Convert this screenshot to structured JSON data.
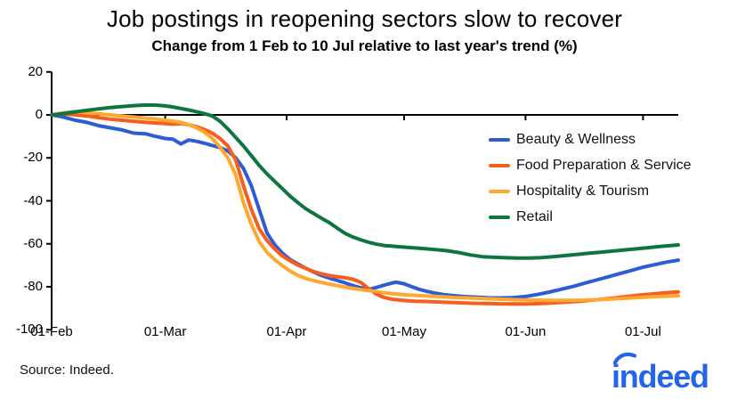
{
  "source_text": "Source: Indeed.",
  "logo_text": "indeed",
  "colors": {
    "logo_blue": "#2563eb",
    "axis_black": "#000000"
  },
  "chart_data": {
    "type": "line",
    "title": "Job postings in reopening sectors slow to recover",
    "subtitle": "Change from 1 Feb to 10 Jul relative to last year's trend (%)",
    "x_unit": "days since 1 Feb 2020",
    "x_axis": {
      "tick_labels": [
        "01-Feb",
        "01-Mar",
        "01-Apr",
        "01-May",
        "01-Jun",
        "01-Jul"
      ],
      "tick_days": [
        0,
        29,
        60,
        90,
        121,
        151
      ],
      "range_days": [
        0,
        160
      ]
    },
    "y_axis": {
      "ticks": [
        20,
        0,
        -20,
        -40,
        -60,
        -80,
        -100
      ],
      "range": [
        -100,
        20
      ],
      "grid": false
    },
    "legend_position": "right-middle",
    "series": [
      {
        "name": "Beauty & Wellness",
        "color": "#2c5dd5",
        "points": [
          [
            0,
            0
          ],
          [
            3,
            -1
          ],
          [
            6,
            -2.5
          ],
          [
            9,
            -3.5
          ],
          [
            12,
            -5
          ],
          [
            15,
            -6
          ],
          [
            18,
            -7
          ],
          [
            21,
            -8.5
          ],
          [
            24,
            -8.8
          ],
          [
            26,
            -9.8
          ],
          [
            29,
            -11
          ],
          [
            31,
            -11.3
          ],
          [
            33,
            -13.5
          ],
          [
            35,
            -11.7
          ],
          [
            37,
            -12.3
          ],
          [
            39,
            -13.2
          ],
          [
            41,
            -14.2
          ],
          [
            43,
            -15.2
          ],
          [
            45,
            -16.8
          ],
          [
            47,
            -20
          ],
          [
            49,
            -25
          ],
          [
            51,
            -33
          ],
          [
            53,
            -44
          ],
          [
            55,
            -55
          ],
          [
            57,
            -60.5
          ],
          [
            59,
            -64.5
          ],
          [
            61,
            -67.5
          ],
          [
            63,
            -69.5
          ],
          [
            65,
            -71.5
          ],
          [
            67,
            -73.2
          ],
          [
            69,
            -74.8
          ],
          [
            71,
            -76
          ],
          [
            73,
            -77.1
          ],
          [
            75,
            -78.2
          ],
          [
            77,
            -79.5
          ],
          [
            79,
            -80.5
          ],
          [
            81,
            -81.2
          ],
          [
            83,
            -80.3
          ],
          [
            85,
            -79.2
          ],
          [
            87,
            -78.2
          ],
          [
            88,
            -77.9
          ],
          [
            90,
            -78.6
          ],
          [
            92,
            -80
          ],
          [
            94,
            -81.3
          ],
          [
            96,
            -82.2
          ],
          [
            98,
            -83
          ],
          [
            100,
            -83.6
          ],
          [
            103,
            -84.2
          ],
          [
            106,
            -84.6
          ],
          [
            109,
            -84.9
          ],
          [
            112,
            -85.2
          ],
          [
            115,
            -85.2
          ],
          [
            118,
            -85
          ],
          [
            121,
            -84.5
          ],
          [
            124,
            -83.6
          ],
          [
            127,
            -82.5
          ],
          [
            130,
            -81.2
          ],
          [
            133,
            -79.9
          ],
          [
            136,
            -78.4
          ],
          [
            139,
            -76.9
          ],
          [
            142,
            -75.4
          ],
          [
            145,
            -73.9
          ],
          [
            148,
            -72.4
          ],
          [
            151,
            -70.9
          ],
          [
            154,
            -69.7
          ],
          [
            157,
            -68.5
          ],
          [
            160,
            -67.6
          ]
        ]
      },
      {
        "name": "Food Preparation & Service",
        "color": "#f75d1d",
        "points": [
          [
            0,
            0
          ],
          [
            3,
            0.5
          ],
          [
            6,
            0
          ],
          [
            9,
            -0.5
          ],
          [
            12,
            -1.3
          ],
          [
            15,
            -2
          ],
          [
            18,
            -2.5
          ],
          [
            21,
            -3
          ],
          [
            24,
            -3.5
          ],
          [
            27,
            -3.8
          ],
          [
            29,
            -4
          ],
          [
            31,
            -4.3
          ],
          [
            33,
            -4
          ],
          [
            35,
            -4.6
          ],
          [
            37,
            -5.5
          ],
          [
            39,
            -6.8
          ],
          [
            41,
            -8.5
          ],
          [
            43,
            -11
          ],
          [
            45,
            -14.5
          ],
          [
            47,
            -21
          ],
          [
            49,
            -33
          ],
          [
            51,
            -44
          ],
          [
            53,
            -53
          ],
          [
            55,
            -58.5
          ],
          [
            57,
            -62.5
          ],
          [
            59,
            -65.8
          ],
          [
            61,
            -68
          ],
          [
            63,
            -70
          ],
          [
            65,
            -71.5
          ],
          [
            67,
            -73
          ],
          [
            69,
            -74
          ],
          [
            71,
            -74.8
          ],
          [
            73,
            -75.3
          ],
          [
            75,
            -75.8
          ],
          [
            77,
            -76.5
          ],
          [
            79,
            -78
          ],
          [
            81,
            -81
          ],
          [
            83,
            -83.5
          ],
          [
            85,
            -85
          ],
          [
            87,
            -85.8
          ],
          [
            89,
            -86.2
          ],
          [
            91,
            -86.5
          ],
          [
            93,
            -86.7
          ],
          [
            96,
            -86.9
          ],
          [
            99,
            -87.1
          ],
          [
            102,
            -87.3
          ],
          [
            105,
            -87.5
          ],
          [
            108,
            -87.7
          ],
          [
            111,
            -87.8
          ],
          [
            114,
            -87.9
          ],
          [
            117,
            -88
          ],
          [
            120,
            -88
          ],
          [
            123,
            -87.9
          ],
          [
            126,
            -87.7
          ],
          [
            129,
            -87.4
          ],
          [
            132,
            -87.1
          ],
          [
            135,
            -86.7
          ],
          [
            138,
            -86.2
          ],
          [
            141,
            -85.7
          ],
          [
            144,
            -85.1
          ],
          [
            147,
            -84.5
          ],
          [
            150,
            -83.9
          ],
          [
            153,
            -83.4
          ],
          [
            156,
            -82.9
          ],
          [
            159,
            -82.5
          ],
          [
            160,
            -82.4
          ]
        ]
      },
      {
        "name": "Hospitality & Tourism",
        "color": "#fea82f",
        "points": [
          [
            0,
            0
          ],
          [
            3,
            1
          ],
          [
            6,
            1.5
          ],
          [
            9,
            1
          ],
          [
            12,
            0.5
          ],
          [
            15,
            0
          ],
          [
            18,
            -0.5
          ],
          [
            21,
            -1
          ],
          [
            24,
            -1.5
          ],
          [
            27,
            -2
          ],
          [
            29,
            -2.5
          ],
          [
            31,
            -3
          ],
          [
            33,
            -3.5
          ],
          [
            35,
            -4.5
          ],
          [
            37,
            -6
          ],
          [
            39,
            -8
          ],
          [
            41,
            -11
          ],
          [
            43,
            -15
          ],
          [
            45,
            -20
          ],
          [
            47,
            -28
          ],
          [
            49,
            -41
          ],
          [
            51,
            -51
          ],
          [
            53,
            -59
          ],
          [
            55,
            -64
          ],
          [
            57,
            -67.5
          ],
          [
            59,
            -70.3
          ],
          [
            61,
            -72.8
          ],
          [
            63,
            -74.8
          ],
          [
            65,
            -76.2
          ],
          [
            67,
            -77.2
          ],
          [
            69,
            -78
          ],
          [
            71,
            -78.8
          ],
          [
            73,
            -79.5
          ],
          [
            75,
            -80.2
          ],
          [
            77,
            -80.8
          ],
          [
            79,
            -81.3
          ],
          [
            81,
            -81.8
          ],
          [
            83,
            -82.3
          ],
          [
            85,
            -82.8
          ],
          [
            87,
            -83.2
          ],
          [
            89,
            -83.5
          ],
          [
            91,
            -83.8
          ],
          [
            94,
            -84.1
          ],
          [
            97,
            -84.4
          ],
          [
            100,
            -84.7
          ],
          [
            103,
            -85
          ],
          [
            106,
            -85.2
          ],
          [
            109,
            -85.4
          ],
          [
            112,
            -85.6
          ],
          [
            115,
            -85.8
          ],
          [
            118,
            -86
          ],
          [
            121,
            -86.1
          ],
          [
            124,
            -86.2
          ],
          [
            127,
            -86.3
          ],
          [
            130,
            -86.3
          ],
          [
            133,
            -86.3
          ],
          [
            136,
            -86.2
          ],
          [
            139,
            -86
          ],
          [
            142,
            -85.8
          ],
          [
            145,
            -85.5
          ],
          [
            148,
            -85.2
          ],
          [
            151,
            -84.9
          ],
          [
            154,
            -84.6
          ],
          [
            157,
            -84.4
          ],
          [
            160,
            -84.2
          ]
        ]
      },
      {
        "name": "Retail",
        "color": "#0e7540",
        "points": [
          [
            0,
            0
          ],
          [
            3,
            0.6
          ],
          [
            6,
            1.4
          ],
          [
            9,
            2.1
          ],
          [
            12,
            2.8
          ],
          [
            15,
            3.4
          ],
          [
            18,
            3.9
          ],
          [
            21,
            4.3
          ],
          [
            24,
            4.6
          ],
          [
            27,
            4.5
          ],
          [
            29,
            4.2
          ],
          [
            31,
            3.7
          ],
          [
            33,
            3
          ],
          [
            35,
            2.3
          ],
          [
            37,
            1.5
          ],
          [
            39,
            0.6
          ],
          [
            41,
            -0.5
          ],
          [
            43,
            -3
          ],
          [
            45,
            -6.5
          ],
          [
            47,
            -10.5
          ],
          [
            49,
            -14.5
          ],
          [
            51,
            -19
          ],
          [
            53,
            -23.5
          ],
          [
            55,
            -27.5
          ],
          [
            57,
            -31
          ],
          [
            59,
            -34.5
          ],
          [
            61,
            -38
          ],
          [
            63,
            -41
          ],
          [
            65,
            -43.8
          ],
          [
            67,
            -46
          ],
          [
            69,
            -48.2
          ],
          [
            71,
            -50.3
          ],
          [
            73,
            -52.8
          ],
          [
            75,
            -55.2
          ],
          [
            77,
            -56.9
          ],
          [
            79,
            -58.2
          ],
          [
            81,
            -59.3
          ],
          [
            83,
            -60.2
          ],
          [
            85,
            -60.8
          ],
          [
            87,
            -61.1
          ],
          [
            89,
            -61.4
          ],
          [
            92,
            -61.8
          ],
          [
            95,
            -62.2
          ],
          [
            98,
            -62.7
          ],
          [
            101,
            -63.2
          ],
          [
            104,
            -64.1
          ],
          [
            107,
            -65.2
          ],
          [
            110,
            -66
          ],
          [
            113,
            -66.3
          ],
          [
            116,
            -66.5
          ],
          [
            119,
            -66.6
          ],
          [
            122,
            -66.6
          ],
          [
            125,
            -66.4
          ],
          [
            128,
            -66
          ],
          [
            131,
            -65.5
          ],
          [
            134,
            -65
          ],
          [
            137,
            -64.4
          ],
          [
            140,
            -63.9
          ],
          [
            143,
            -63.4
          ],
          [
            146,
            -62.9
          ],
          [
            149,
            -62.4
          ],
          [
            152,
            -61.9
          ],
          [
            155,
            -61.3
          ],
          [
            158,
            -60.8
          ],
          [
            160,
            -60.5
          ]
        ]
      }
    ]
  }
}
